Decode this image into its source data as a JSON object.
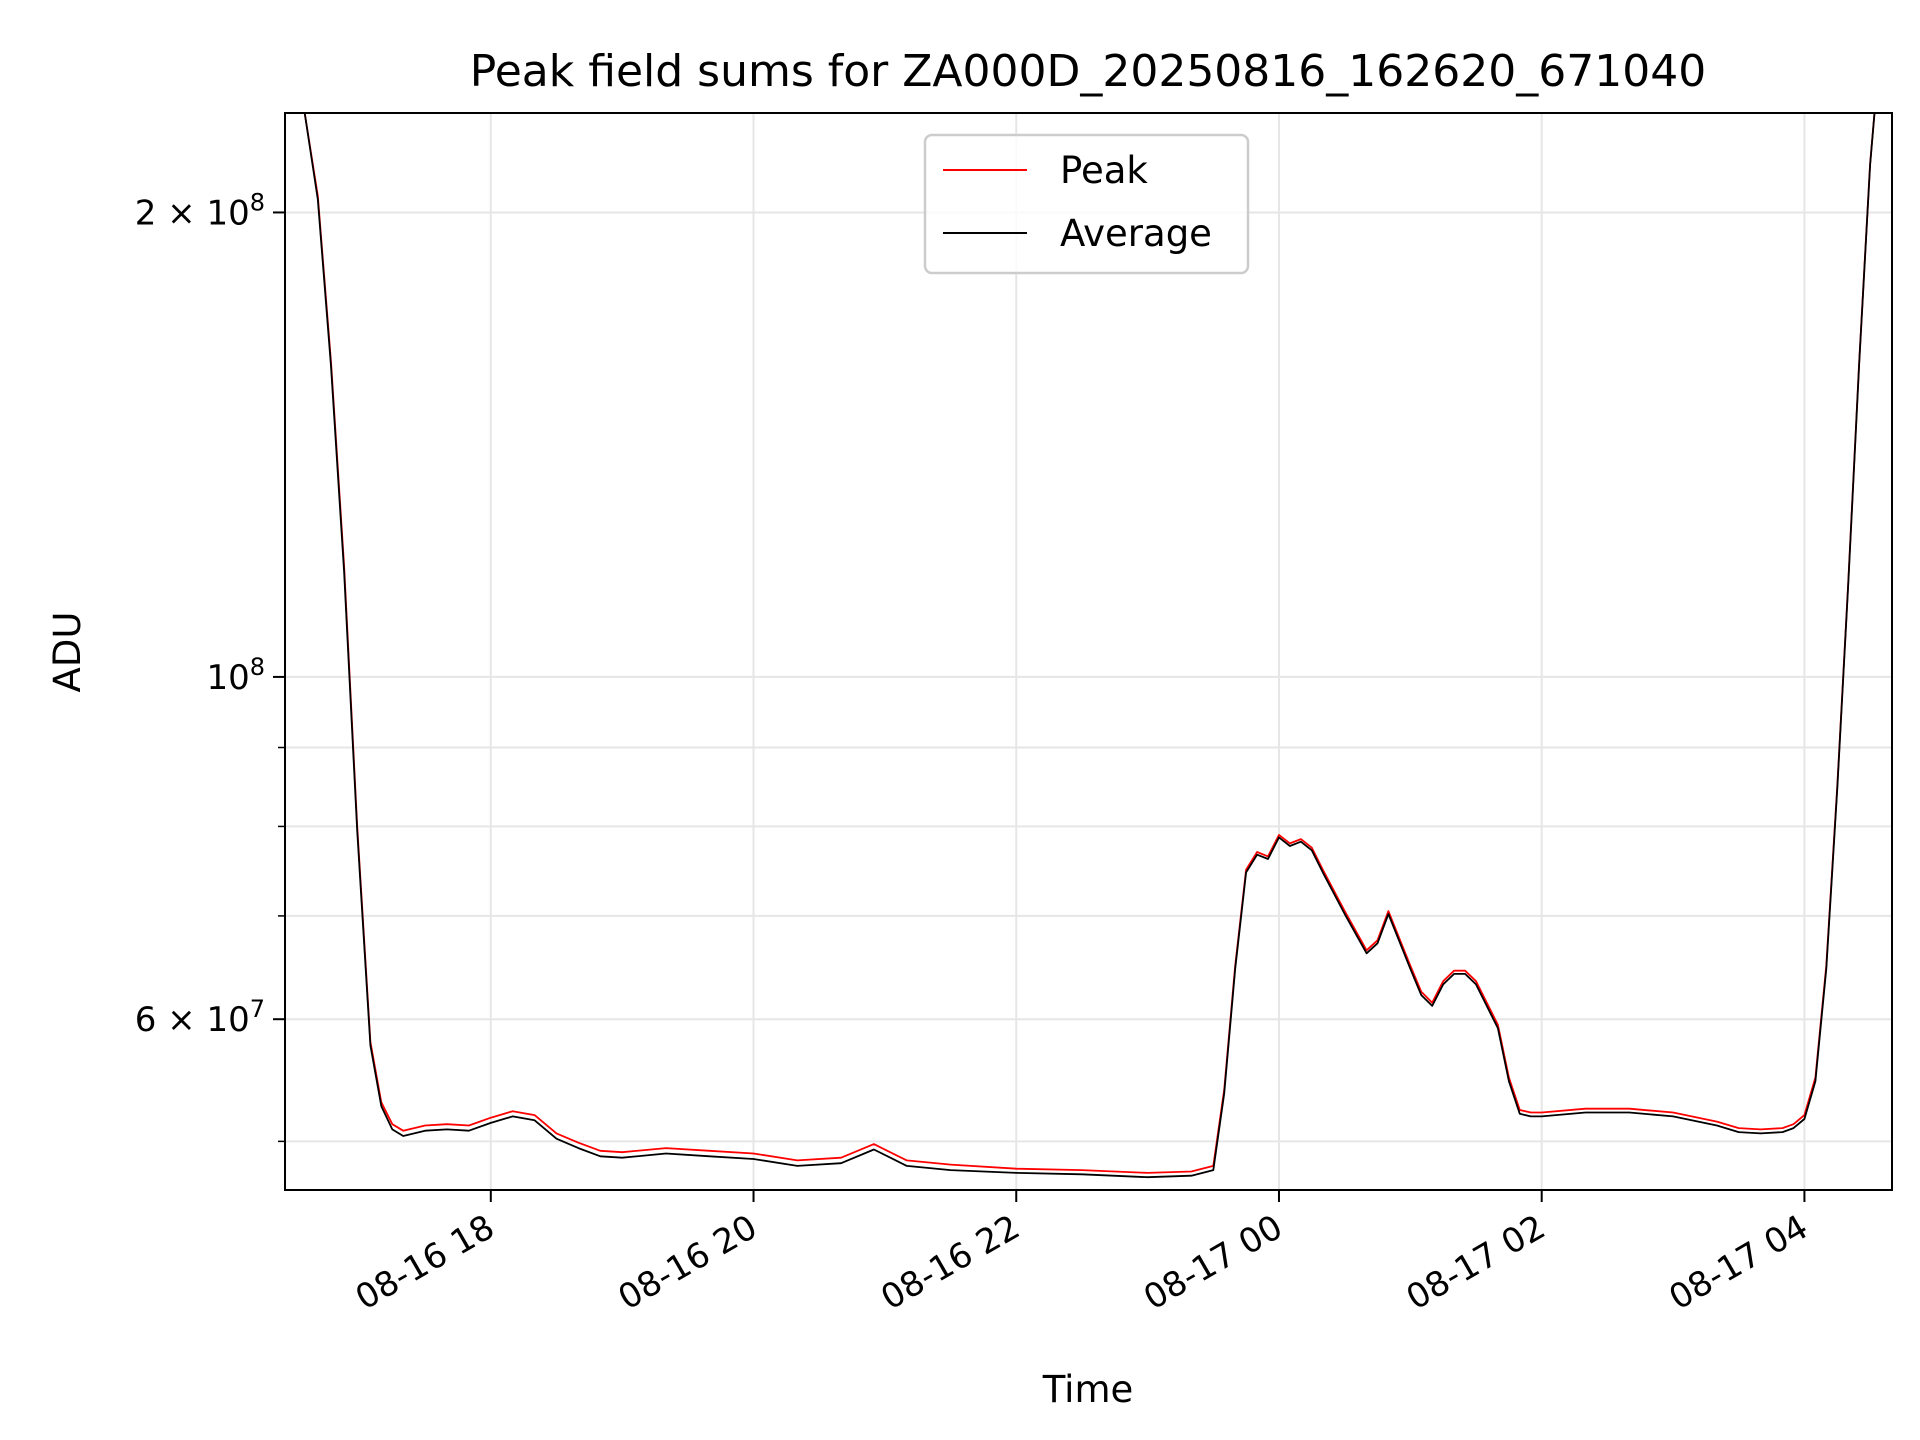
{
  "chart_data": {
    "type": "line",
    "title": "Peak field sums for ZA000D_20250816_162620_671040",
    "xlabel": "Time",
    "ylabel": "ADU",
    "yscale": "log",
    "grid": true,
    "legend_position": "top-center",
    "xlim": [
      "2025-08-16 16:26",
      "2025-08-17 04:40"
    ],
    "ylim": [
      46500000,
      232000000
    ],
    "x_ticks": [
      "2025-08-16 18:00",
      "2025-08-16 20:00",
      "2025-08-16 22:00",
      "2025-08-17 00:00",
      "2025-08-17 02:00",
      "2025-08-17 04:00"
    ],
    "x_tick_labels": [
      "08-16 18",
      "08-16 20",
      "08-16 22",
      "08-17 00",
      "08-17 02",
      "08-17 04"
    ],
    "y_ticks_major": [
      {
        "value": 200000000,
        "mantissa": "2",
        "exp": "8"
      },
      {
        "value": 100000000,
        "mantissa": "",
        "exp": "8"
      },
      {
        "value": 60000000,
        "mantissa": "6",
        "exp": "7"
      }
    ],
    "y_ticks_minor": [
      50000000,
      70000000,
      80000000,
      90000000
    ],
    "series": [
      {
        "name": "Peak",
        "color": "#ff0000",
        "x": [
          "2025-08-16 16:35",
          "2025-08-16 16:41",
          "2025-08-16 16:47",
          "2025-08-16 16:53",
          "2025-08-16 16:59",
          "2025-08-16 17:05",
          "2025-08-16 17:10",
          "2025-08-16 17:15",
          "2025-08-16 17:20",
          "2025-08-16 17:30",
          "2025-08-16 17:40",
          "2025-08-16 17:50",
          "2025-08-16 18:00",
          "2025-08-16 18:10",
          "2025-08-16 18:20",
          "2025-08-16 18:30",
          "2025-08-16 18:40",
          "2025-08-16 18:50",
          "2025-08-16 19:00",
          "2025-08-16 19:20",
          "2025-08-16 19:40",
          "2025-08-16 20:00",
          "2025-08-16 20:20",
          "2025-08-16 20:40",
          "2025-08-16 20:55",
          "2025-08-16 21:10",
          "2025-08-16 21:30",
          "2025-08-16 22:00",
          "2025-08-16 22:30",
          "2025-08-16 23:00",
          "2025-08-16 23:20",
          "2025-08-16 23:30",
          "2025-08-16 23:35",
          "2025-08-16 23:40",
          "2025-08-16 23:45",
          "2025-08-16 23:50",
          "2025-08-16 23:55",
          "2025-08-17 00:00",
          "2025-08-17 00:05",
          "2025-08-17 00:10",
          "2025-08-17 00:15",
          "2025-08-17 00:20",
          "2025-08-17 00:30",
          "2025-08-17 00:40",
          "2025-08-17 00:45",
          "2025-08-17 00:50",
          "2025-08-17 01:00",
          "2025-08-17 01:05",
          "2025-08-17 01:10",
          "2025-08-17 01:15",
          "2025-08-17 01:20",
          "2025-08-17 01:25",
          "2025-08-17 01:30",
          "2025-08-17 01:40",
          "2025-08-17 01:45",
          "2025-08-17 01:50",
          "2025-08-17 01:55",
          "2025-08-17 02:00",
          "2025-08-17 02:20",
          "2025-08-17 02:40",
          "2025-08-17 03:00",
          "2025-08-17 03:20",
          "2025-08-17 03:30",
          "2025-08-17 03:40",
          "2025-08-17 03:50",
          "2025-08-17 03:55",
          "2025-08-17 04:00",
          "2025-08-17 04:05",
          "2025-08-17 04:10",
          "2025-08-17 04:15",
          "2025-08-17 04:20",
          "2025-08-17 04:25",
          "2025-08-17 04:30",
          "2025-08-17 04:32"
        ],
        "values": [
          232000000,
          205000000,
          160000000,
          118000000,
          80000000,
          58000000,
          53000000,
          51300000,
          50800000,
          51200000,
          51300000,
          51200000,
          51800000,
          52300000,
          52000000,
          50600000,
          49900000,
          49300000,
          49200000,
          49500000,
          49300000,
          49100000,
          48600000,
          48800000,
          49800000,
          48600000,
          48300000,
          48000000,
          47900000,
          47700000,
          47800000,
          48200000,
          54000000,
          65000000,
          75000000,
          77000000,
          76500000,
          79000000,
          78000000,
          78500000,
          77500000,
          75000000,
          70500000,
          66500000,
          67500000,
          70500000,
          65000000,
          62500000,
          61500000,
          63500000,
          64500000,
          64500000,
          63500000,
          59500000,
          55000000,
          52400000,
          52200000,
          52200000,
          52500000,
          52500000,
          52200000,
          51500000,
          51000000,
          50900000,
          51000000,
          51300000,
          52000000,
          55000000,
          65000000,
          85000000,
          115000000,
          160000000,
          215000000,
          232000000
        ]
      },
      {
        "name": "Average",
        "color": "#000000",
        "x": [
          "2025-08-16 16:35",
          "2025-08-16 16:41",
          "2025-08-16 16:47",
          "2025-08-16 16:53",
          "2025-08-16 16:59",
          "2025-08-16 17:05",
          "2025-08-16 17:10",
          "2025-08-16 17:15",
          "2025-08-16 17:20",
          "2025-08-16 17:30",
          "2025-08-16 17:40",
          "2025-08-16 17:50",
          "2025-08-16 18:00",
          "2025-08-16 18:10",
          "2025-08-16 18:20",
          "2025-08-16 18:30",
          "2025-08-16 18:40",
          "2025-08-16 18:50",
          "2025-08-16 19:00",
          "2025-08-16 19:20",
          "2025-08-16 19:40",
          "2025-08-16 20:00",
          "2025-08-16 20:20",
          "2025-08-16 20:40",
          "2025-08-16 20:55",
          "2025-08-16 21:10",
          "2025-08-16 21:30",
          "2025-08-16 22:00",
          "2025-08-16 22:30",
          "2025-08-16 23:00",
          "2025-08-16 23:20",
          "2025-08-16 23:30",
          "2025-08-16 23:35",
          "2025-08-16 23:40",
          "2025-08-16 23:45",
          "2025-08-16 23:50",
          "2025-08-16 23:55",
          "2025-08-17 00:00",
          "2025-08-17 00:05",
          "2025-08-17 00:10",
          "2025-08-17 00:15",
          "2025-08-17 00:20",
          "2025-08-17 00:30",
          "2025-08-17 00:40",
          "2025-08-17 00:45",
          "2025-08-17 00:50",
          "2025-08-17 01:00",
          "2025-08-17 01:05",
          "2025-08-17 01:10",
          "2025-08-17 01:15",
          "2025-08-17 01:20",
          "2025-08-17 01:25",
          "2025-08-17 01:30",
          "2025-08-17 01:40",
          "2025-08-17 01:45",
          "2025-08-17 01:50",
          "2025-08-17 01:55",
          "2025-08-17 02:00",
          "2025-08-17 02:20",
          "2025-08-17 02:40",
          "2025-08-17 03:00",
          "2025-08-17 03:20",
          "2025-08-17 03:30",
          "2025-08-17 03:40",
          "2025-08-17 03:50",
          "2025-08-17 03:55",
          "2025-08-17 04:00",
          "2025-08-17 04:05",
          "2025-08-17 04:10",
          "2025-08-17 04:15",
          "2025-08-17 04:20",
          "2025-08-17 04:25",
          "2025-08-17 04:30",
          "2025-08-17 04:32"
        ],
        "values": [
          232000000,
          204000000,
          159000000,
          117000000,
          79500000,
          57700000,
          52700000,
          50900000,
          50400000,
          50800000,
          50900000,
          50800000,
          51400000,
          51900000,
          51600000,
          50200000,
          49500000,
          48900000,
          48800000,
          49100000,
          48900000,
          48700000,
          48200000,
          48400000,
          49400000,
          48200000,
          47900000,
          47700000,
          47600000,
          47400000,
          47500000,
          47900000,
          53700000,
          64700000,
          74700000,
          76700000,
          76200000,
          78700000,
          77700000,
          78200000,
          77200000,
          74700000,
          70200000,
          66200000,
          67200000,
          70200000,
          64700000,
          62200000,
          61200000,
          63200000,
          64200000,
          64200000,
          63200000,
          59200000,
          54700000,
          52100000,
          51900000,
          51900000,
          52200000,
          52200000,
          51900000,
          51200000,
          50700000,
          50600000,
          50700000,
          51000000,
          51700000,
          54700000,
          64700000,
          84700000,
          114700000,
          159700000,
          214700000,
          232000000
        ]
      }
    ]
  }
}
